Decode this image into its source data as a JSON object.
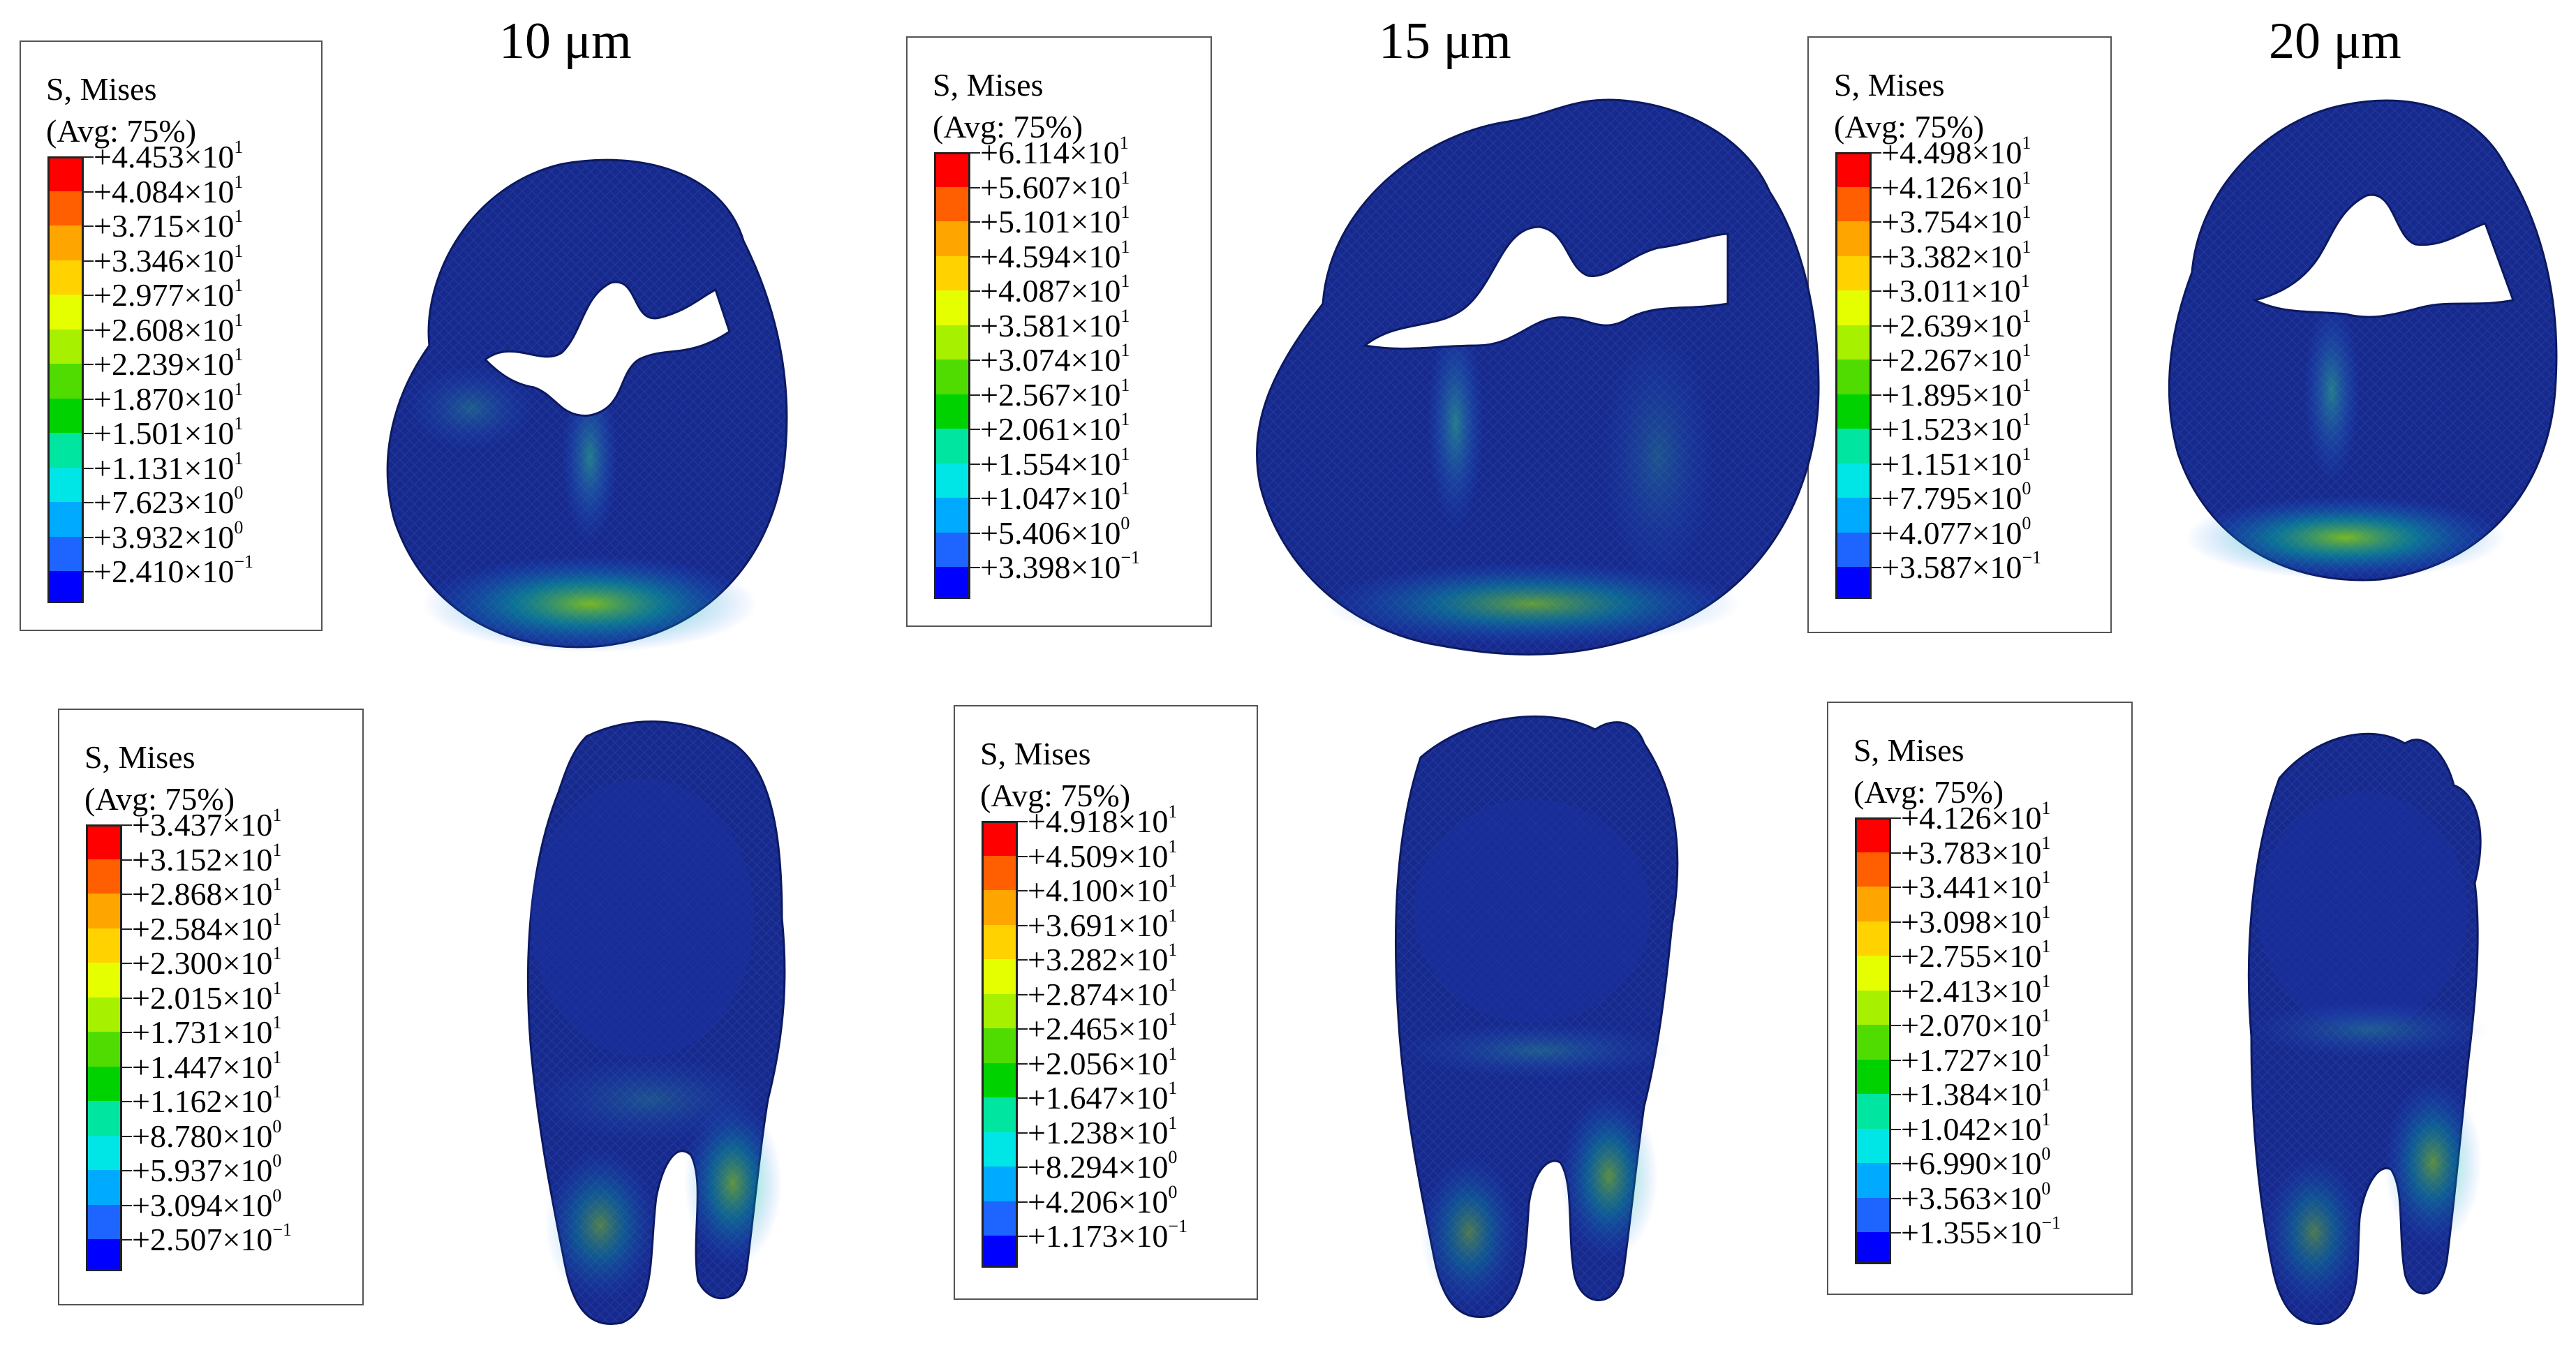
{
  "columns": [
    {
      "label": "10 μm"
    },
    {
      "label": "15 μm"
    },
    {
      "label": "20 μm"
    }
  ],
  "color_scale": [
    "#ff0000",
    "#ff5f00",
    "#ffa500",
    "#ffd200",
    "#e6ff00",
    "#a6f000",
    "#50dc00",
    "#00d200",
    "#00e6a0",
    "#00e6e6",
    "#00aaff",
    "#1e64ff",
    "#0000ff"
  ],
  "legends": [
    {
      "title": "S, Mises",
      "avg": "(Avg: 75%)",
      "values": [
        {
          "m": "+4.453×10",
          "e": "1"
        },
        {
          "m": "+4.084×10",
          "e": "1"
        },
        {
          "m": "+3.715×10",
          "e": "1"
        },
        {
          "m": "+3.346×10",
          "e": "1"
        },
        {
          "m": "+2.977×10",
          "e": "1"
        },
        {
          "m": "+2.608×10",
          "e": "1"
        },
        {
          "m": "+2.239×10",
          "e": "1"
        },
        {
          "m": "+1.870×10",
          "e": "1"
        },
        {
          "m": "+1.501×10",
          "e": "1"
        },
        {
          "m": "+1.131×10",
          "e": "1"
        },
        {
          "m": "+7.623×10",
          "e": "0"
        },
        {
          "m": "+3.932×10",
          "e": "0"
        },
        {
          "m": "+2.410×10",
          "e": "−1"
        }
      ]
    },
    {
      "title": "S, Mises",
      "avg": "(Avg: 75%)",
      "values": [
        {
          "m": "+6.114×10",
          "e": "1"
        },
        {
          "m": "+5.607×10",
          "e": "1"
        },
        {
          "m": "+5.101×10",
          "e": "1"
        },
        {
          "m": "+4.594×10",
          "e": "1"
        },
        {
          "m": "+4.087×10",
          "e": "1"
        },
        {
          "m": "+3.581×10",
          "e": "1"
        },
        {
          "m": "+3.074×10",
          "e": "1"
        },
        {
          "m": "+2.567×10",
          "e": "1"
        },
        {
          "m": "+2.061×10",
          "e": "1"
        },
        {
          "m": "+1.554×10",
          "e": "1"
        },
        {
          "m": "+1.047×10",
          "e": "1"
        },
        {
          "m": "+5.406×10",
          "e": "0"
        },
        {
          "m": "+3.398×10",
          "e": "−1"
        }
      ]
    },
    {
      "title": "S, Mises",
      "avg": "(Avg: 75%)",
      "values": [
        {
          "m": "+4.498×10",
          "e": "1"
        },
        {
          "m": "+4.126×10",
          "e": "1"
        },
        {
          "m": "+3.754×10",
          "e": "1"
        },
        {
          "m": "+3.382×10",
          "e": "1"
        },
        {
          "m": "+3.011×10",
          "e": "1"
        },
        {
          "m": "+2.639×10",
          "e": "1"
        },
        {
          "m": "+2.267×10",
          "e": "1"
        },
        {
          "m": "+1.895×10",
          "e": "1"
        },
        {
          "m": "+1.523×10",
          "e": "1"
        },
        {
          "m": "+1.151×10",
          "e": "1"
        },
        {
          "m": "+7.795×10",
          "e": "0"
        },
        {
          "m": "+4.077×10",
          "e": "0"
        },
        {
          "m": "+3.587×10",
          "e": "−1"
        }
      ]
    },
    {
      "title": "S, Mises",
      "avg": "(Avg: 75%)",
      "values": [
        {
          "m": "+3.437×10",
          "e": "1"
        },
        {
          "m": "+3.152×10",
          "e": "1"
        },
        {
          "m": "+2.868×10",
          "e": "1"
        },
        {
          "m": "+2.584×10",
          "e": "1"
        },
        {
          "m": "+2.300×10",
          "e": "1"
        },
        {
          "m": "+2.015×10",
          "e": "1"
        },
        {
          "m": "+1.731×10",
          "e": "1"
        },
        {
          "m": "+1.447×10",
          "e": "1"
        },
        {
          "m": "+1.162×10",
          "e": "1"
        },
        {
          "m": "+8.780×10",
          "e": "0"
        },
        {
          "m": "+5.937×10",
          "e": "0"
        },
        {
          "m": "+3.094×10",
          "e": "0"
        },
        {
          "m": "+2.507×10",
          "e": "−1"
        }
      ]
    },
    {
      "title": "S, Mises",
      "avg": "(Avg: 75%)",
      "values": [
        {
          "m": "+4.918×10",
          "e": "1"
        },
        {
          "m": "+4.509×10",
          "e": "1"
        },
        {
          "m": "+4.100×10",
          "e": "1"
        },
        {
          "m": "+3.691×10",
          "e": "1"
        },
        {
          "m": "+3.282×10",
          "e": "1"
        },
        {
          "m": "+2.874×10",
          "e": "1"
        },
        {
          "m": "+2.465×10",
          "e": "1"
        },
        {
          "m": "+2.056×10",
          "e": "1"
        },
        {
          "m": "+1.647×10",
          "e": "1"
        },
        {
          "m": "+1.238×10",
          "e": "1"
        },
        {
          "m": "+8.294×10",
          "e": "0"
        },
        {
          "m": "+4.206×10",
          "e": "0"
        },
        {
          "m": "+1.173×10",
          "e": "−1"
        }
      ]
    },
    {
      "title": "S, Mises",
      "avg": "(Avg: 75%)",
      "values": [
        {
          "m": "+4.126×10",
          "e": "1"
        },
        {
          "m": "+3.783×10",
          "e": "1"
        },
        {
          "m": "+3.441×10",
          "e": "1"
        },
        {
          "m": "+3.098×10",
          "e": "1"
        },
        {
          "m": "+2.755×10",
          "e": "1"
        },
        {
          "m": "+2.413×10",
          "e": "1"
        },
        {
          "m": "+2.070×10",
          "e": "1"
        },
        {
          "m": "+1.727×10",
          "e": "1"
        },
        {
          "m": "+1.384×10",
          "e": "1"
        },
        {
          "m": "+1.042×10",
          "e": "1"
        },
        {
          "m": "+6.990×10",
          "e": "0"
        },
        {
          "m": "+3.563×10",
          "e": "0"
        },
        {
          "m": "+1.355×10",
          "e": "−1"
        }
      ]
    }
  ]
}
